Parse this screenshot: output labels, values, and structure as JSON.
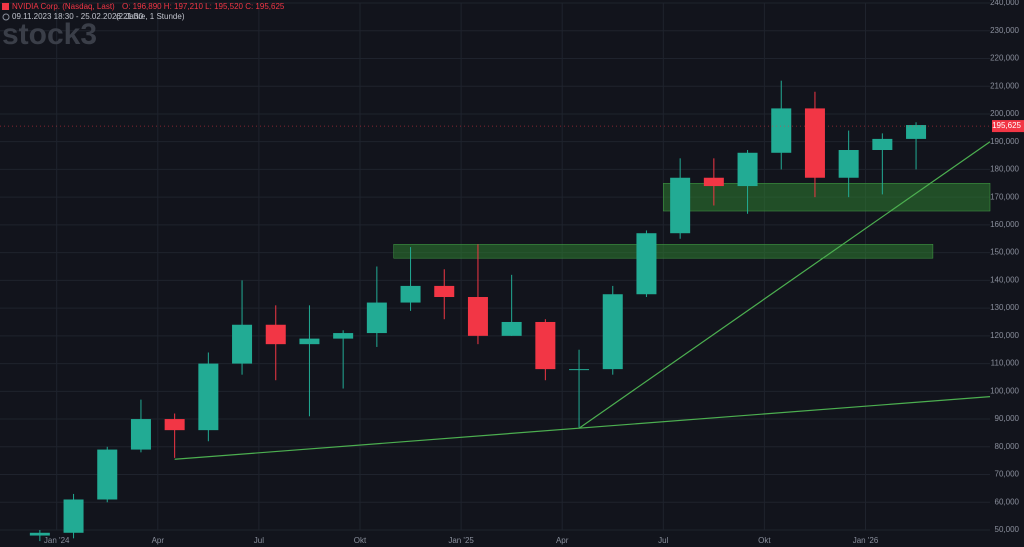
{
  "chart_data": {
    "type": "candlestick",
    "title": "NVIDIA Corp. (Nasdaq, Last)",
    "ohlc_header": "O: 196,890  H: 197,210  L: 195,520  C: 195,625",
    "subtitle": "09.11.2023 18:30 - 25.02.2026 21:30",
    "interval": "(2 Jahre, 1 Stunde)",
    "watermark": "stock3",
    "up_color": "#22ab94",
    "down_color": "#f23645",
    "grid": true,
    "categories": [
      null,
      "Jan '24",
      null,
      null,
      "Apr",
      null,
      null,
      "Jul",
      null,
      null,
      "Okt",
      null,
      null,
      "Jan '25",
      null,
      null,
      "Apr",
      null,
      null,
      "Jul",
      null,
      null,
      "Okt",
      null,
      null,
      "Jan '26",
      null
    ],
    "open": [
      48,
      49,
      61,
      79,
      90,
      86,
      110,
      124,
      117,
      119,
      121,
      132,
      138,
      134,
      120,
      125,
      108,
      108,
      135,
      157,
      177,
      174,
      186,
      202,
      177,
      187,
      191
    ],
    "high": [
      50,
      63,
      80,
      97,
      92,
      114,
      140,
      131,
      131,
      122,
      145,
      152,
      144,
      153,
      142,
      126,
      115,
      138,
      158,
      184,
      184,
      187,
      212,
      208,
      194,
      193,
      197
    ],
    "low": [
      46,
      47,
      60,
      78,
      76,
      82,
      106,
      104,
      91,
      101,
      116,
      129,
      126,
      117,
      120,
      104,
      87,
      106,
      134,
      155,
      167,
      164,
      180,
      170,
      170,
      171,
      180
    ],
    "close": [
      49,
      61,
      79,
      90,
      86,
      110,
      124,
      117,
      119,
      121,
      132,
      138,
      134,
      120,
      125,
      108,
      108,
      135,
      157,
      177,
      174,
      186,
      202,
      177,
      187,
      191,
      196
    ],
    "ylim": [
      50,
      240
    ],
    "yticks": [
      {
        "value": 50,
        "label": "50,000"
      },
      {
        "value": 60,
        "label": "60,000"
      },
      {
        "value": 70,
        "label": "70,000"
      },
      {
        "value": 80,
        "label": "80,000"
      },
      {
        "value": 90,
        "label": "90,000"
      },
      {
        "value": 100,
        "label": "100,000"
      },
      {
        "value": 110,
        "label": "110,000"
      },
      {
        "value": 120,
        "label": "120,000"
      },
      {
        "value": 130,
        "label": "130,000"
      },
      {
        "value": 140,
        "label": "140,000"
      },
      {
        "value": 150,
        "label": "150,000"
      },
      {
        "value": 160,
        "label": "160,000"
      },
      {
        "value": 170,
        "label": "170,000"
      },
      {
        "value": 180,
        "label": "180,000"
      },
      {
        "value": 190,
        "label": "190,000"
      },
      {
        "value": 200,
        "label": "200,000"
      },
      {
        "value": 210,
        "label": "210,000"
      },
      {
        "value": 220,
        "label": "220,000"
      },
      {
        "value": 230,
        "label": "230,000"
      },
      {
        "value": 240,
        "label": "240,000"
      }
    ],
    "last_price": {
      "value": 195.625,
      "label": "195,625"
    },
    "trendlines": [
      {
        "color": "#4caf50",
        "from": [
          4,
          75.5
        ],
        "to": [
          16,
          86.7
        ],
        "extend": "right"
      },
      {
        "color": "#4caf50",
        "from": [
          16,
          86.7
        ],
        "to": [
          26,
          171.4
        ],
        "extend": "right"
      }
    ],
    "zones": [
      {
        "color": "#2e7d32",
        "low": 148,
        "high": 153,
        "from": 11,
        "to": 26
      },
      {
        "color": "#2e7d32",
        "low": 165,
        "high": 175,
        "from": 19,
        "extend": "right"
      }
    ]
  }
}
